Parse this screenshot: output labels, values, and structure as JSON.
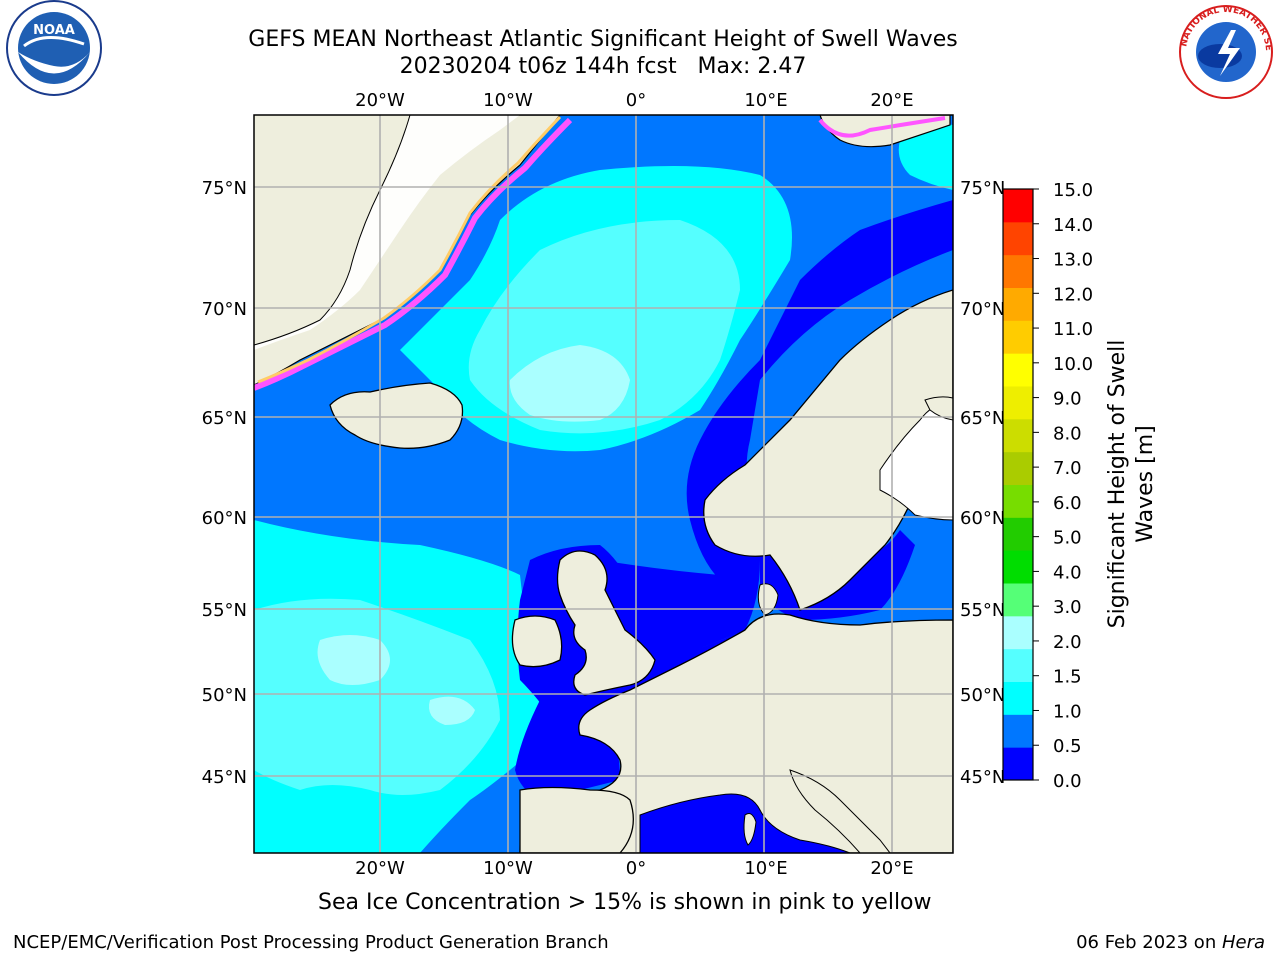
{
  "title": {
    "line1": "GEFS MEAN Northeast Atlantic Significant Height of Swell Waves",
    "line2": "20230204 t06z 144h fcst   Max: 2.47"
  },
  "map": {
    "lon_labels": [
      "20°W",
      "10°W",
      "0°",
      "10°E",
      "20°E"
    ],
    "lat_labels": [
      "75°N",
      "70°N",
      "65°N",
      "60°N",
      "55°N",
      "50°N",
      "45°N"
    ],
    "colors": {
      "land": "#eeeedd",
      "ocean_base": "#0000ff",
      "grid": "#b0b0b0"
    }
  },
  "colorbar": {
    "label": "Significant Height of Swell\nWaves [m]",
    "label_line1": "Significant Height of Swell",
    "label_line2": "Waves [m]",
    "ticks": [
      "15.0",
      "14.0",
      "13.0",
      "12.0",
      "11.0",
      "10.0",
      "9.0",
      "8.0",
      "7.0",
      "6.0",
      "5.0",
      "4.0",
      "3.0",
      "2.0",
      "1.5",
      "1.0",
      "0.5",
      "0.0"
    ],
    "colors": [
      "#0000ff",
      "#0077ff",
      "#00ffff",
      "#55ffff",
      "#aaffff",
      "#55ff77",
      "#00dd00",
      "#22cc00",
      "#77dd00",
      "#aacc00",
      "#ccdd00",
      "#eeee00",
      "#ffff00",
      "#ffcc00",
      "#ffaa00",
      "#ff7700",
      "#ff4400",
      "#ff0000"
    ]
  },
  "footnote": "Sea Ice Concentration > 15% is shown in pink to yellow",
  "credit_left": "NCEP/EMC/Verification Post Processing Product Generation Branch",
  "credit_right_date": "06 Feb 2023 on ",
  "credit_right_host": "Hera",
  "logos": {
    "noaa": "NOAA",
    "nws": "NATIONAL WEATHER SERVICE"
  }
}
